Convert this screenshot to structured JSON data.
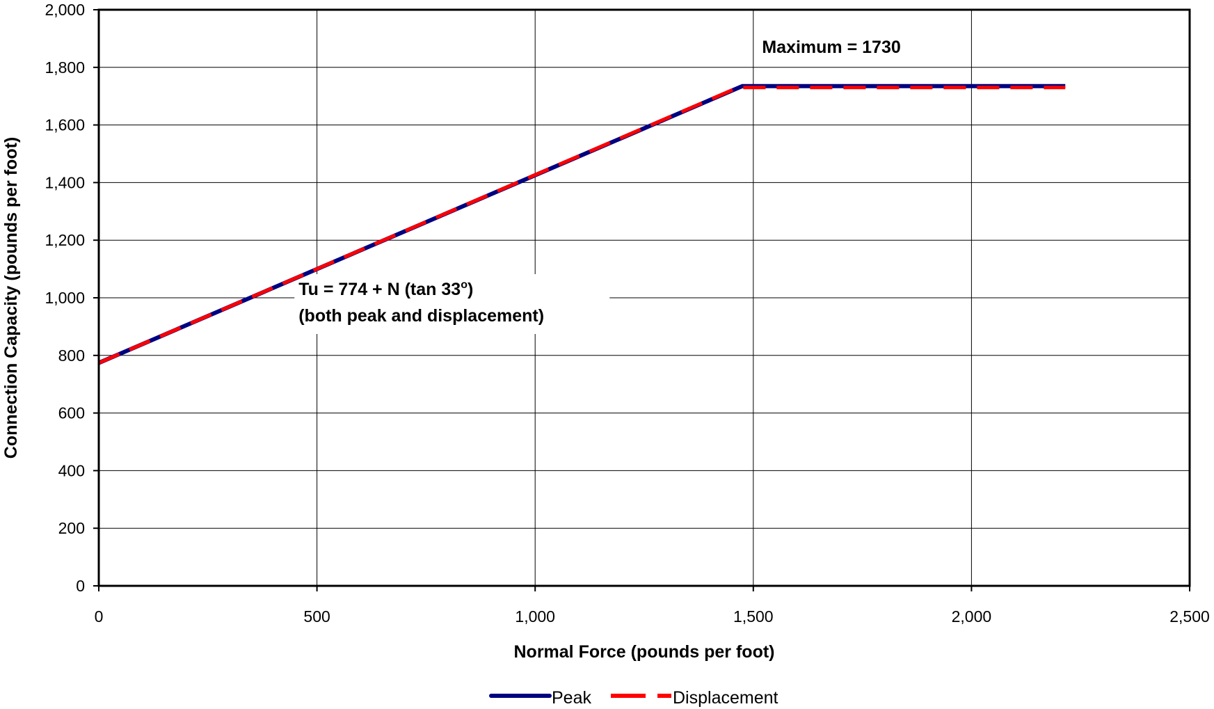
{
  "chart_data": {
    "type": "line",
    "xlabel": "Normal Force (pounds per foot)",
    "ylabel": "Connection Capacity (pounds per foot)",
    "xlim": [
      0,
      2500
    ],
    "ylim": [
      0,
      2000
    ],
    "x_ticks": [
      0,
      500,
      1000,
      1500,
      2000,
      2500
    ],
    "x_tick_labels": [
      "0",
      "500",
      "1,000",
      "1,500",
      "2,000",
      "2,500"
    ],
    "y_ticks": [
      0,
      200,
      400,
      600,
      800,
      1000,
      1200,
      1400,
      1600,
      1800,
      2000
    ],
    "y_tick_labels": [
      "0",
      "200",
      "400",
      "600",
      "800",
      "1,000",
      "1,200",
      "1,400",
      "1,600",
      "1,800",
      "2,000"
    ],
    "grid": true,
    "legend_position": "bottom",
    "series": [
      {
        "name": "Peak",
        "color": "#000080",
        "style": "solid",
        "x": [
          0,
          1475,
          2215
        ],
        "y": [
          774,
          1735,
          1735
        ]
      },
      {
        "name": "Displacement",
        "color": "#ff0000",
        "style": "dashed",
        "x": [
          0,
          1465,
          2215
        ],
        "y": [
          774,
          1730,
          1730
        ]
      }
    ],
    "annotations": [
      {
        "text": "Maximum = 1730",
        "x": 1520,
        "y": 1850
      },
      {
        "text_line1": "Tu = 774 + N (tan 33",
        "superscript": "o",
        "text_line1_end": ")",
        "text_line2": "(both peak and displacement)",
        "x": 560,
        "y": 1000
      }
    ]
  }
}
